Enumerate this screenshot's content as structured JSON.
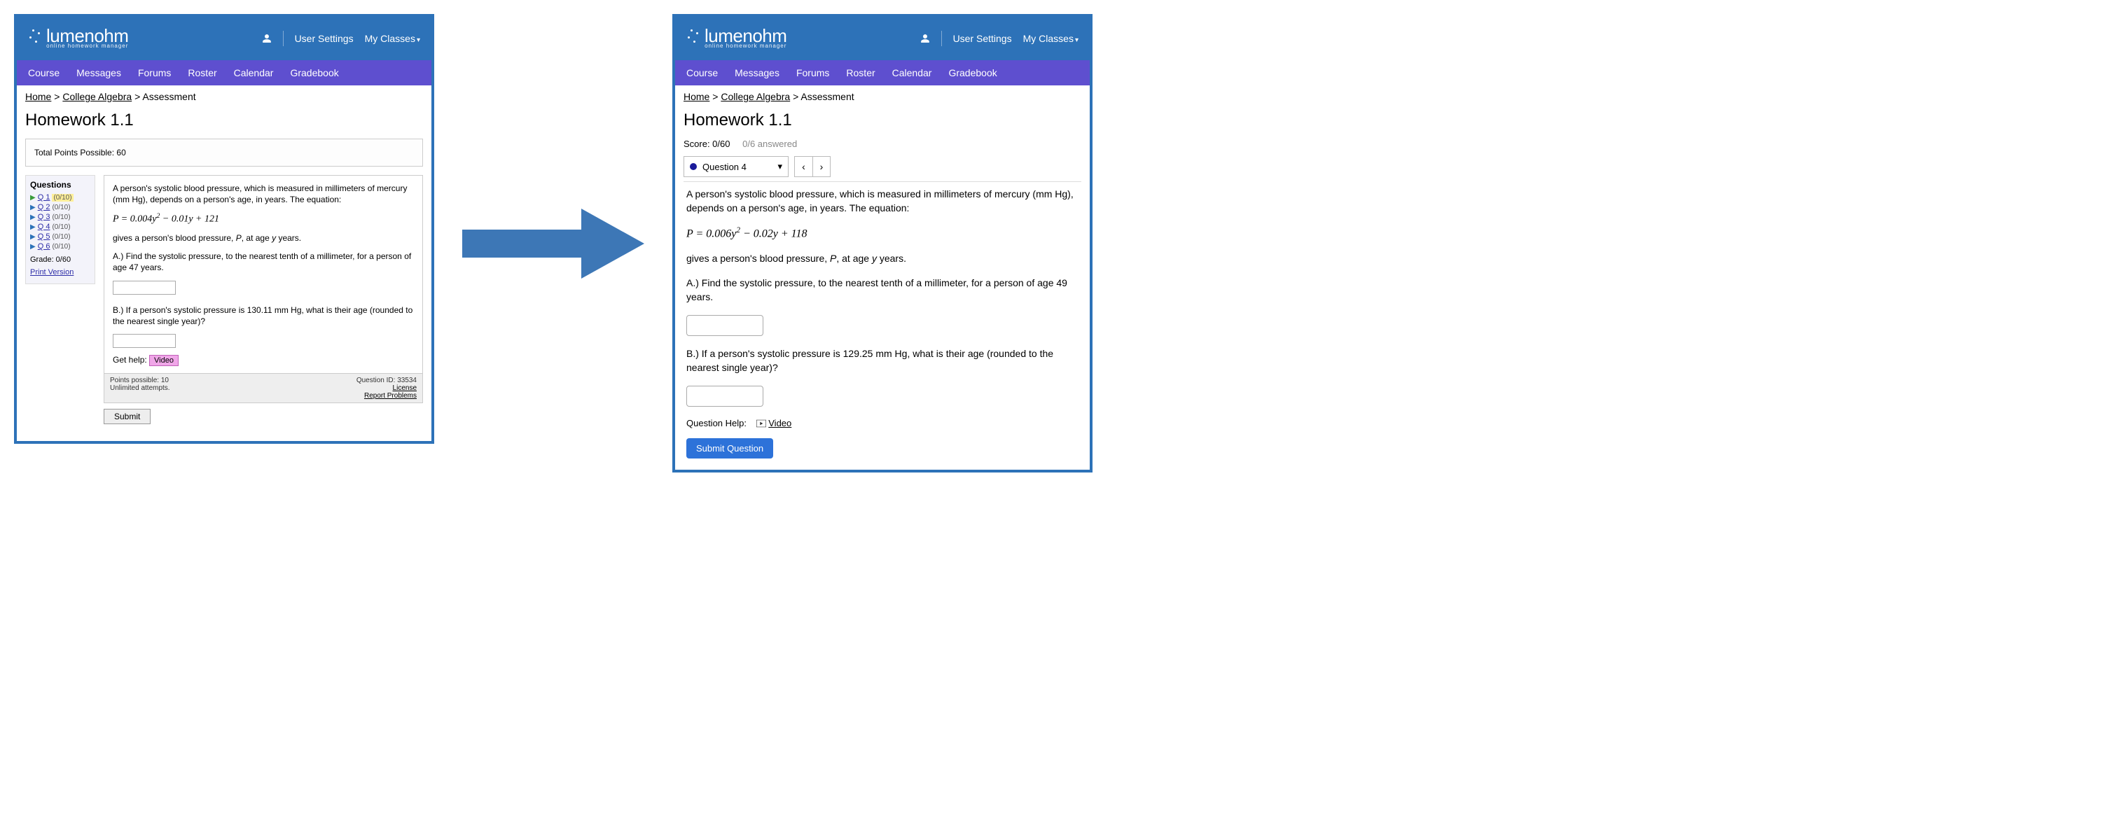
{
  "brand": {
    "name_bold": "lumen",
    "name_light": "ohm",
    "subtitle": "online homework manager"
  },
  "topnav": {
    "user_settings": "User Settings",
    "my_classes": "My Classes"
  },
  "tabs": [
    "Course",
    "Messages",
    "Forums",
    "Roster",
    "Calendar",
    "Gradebook"
  ],
  "breadcrumb": {
    "home": "Home",
    "course": "College Algebra",
    "page": "Assessment"
  },
  "page_title": "Homework 1.1",
  "colors": {
    "frame": "#2d72b8",
    "navbar": "#5e4fcf",
    "primary_btn": "#2d72d9",
    "video_btn_bg": "#f0a6e8"
  },
  "old": {
    "points_line": "Total Points Possible: 60",
    "sidebar": {
      "heading": "Questions",
      "items": [
        {
          "label": "Q 1",
          "score": "(0/10)",
          "selected": true
        },
        {
          "label": "Q 2",
          "score": "(0/10)",
          "selected": false
        },
        {
          "label": "Q 3",
          "score": "(0/10)",
          "selected": false
        },
        {
          "label": "Q 4",
          "score": "(0/10)",
          "selected": false
        },
        {
          "label": "Q 5",
          "score": "(0/10)",
          "selected": false
        },
        {
          "label": "Q 6",
          "score": "(0/10)",
          "selected": false
        }
      ],
      "grade": "Grade: 0/60",
      "print": "Print Version"
    },
    "question": {
      "intro": "A person's systolic blood pressure, which is measured in millimeters of mercury (mm Hg), depends on a person's age, in years. The equation:",
      "equation_html": "P = 0.004y<sup>2</sup> − 0.01y + 121",
      "gives": "gives a person's blood pressure, <i>P</i>, at age <i>y</i> years.",
      "partA": "A.) Find the systolic pressure, to the nearest tenth of a millimeter, for a person of age 47 years.",
      "partB": "B.) If a person's systolic pressure is 130.11 mm Hg, what is their age (rounded to the nearest single year)?",
      "help_label": "Get help:",
      "video": "Video",
      "points_possible": "Points possible: 10",
      "attempts": "Unlimited attempts.",
      "qid": "Question ID: 33534",
      "license": "License",
      "report": "Report Problems",
      "submit": "Submit"
    }
  },
  "new": {
    "score_label": "Score: 0/60",
    "answered": "0/6 answered",
    "qsel": "Question 4",
    "question": {
      "intro": "A person's systolic blood pressure, which is measured in millimeters of mercury (mm Hg), depends on a person's age, in years. The equation:",
      "equation_html": "P = 0.006y<sup>2</sup> − 0.02y + 118",
      "gives": "gives a person's blood pressure, <i>P</i>, at age <i>y</i> years.",
      "partA": "A.) Find the systolic pressure, to the nearest tenth of a millimeter, for a person of age 49 years.",
      "partB": "B.) If a person's systolic pressure is 129.25 mm Hg, what is their age (rounded to the nearest single year)?",
      "help_label": "Question Help:",
      "video": "Video",
      "submit": "Submit Question"
    }
  }
}
